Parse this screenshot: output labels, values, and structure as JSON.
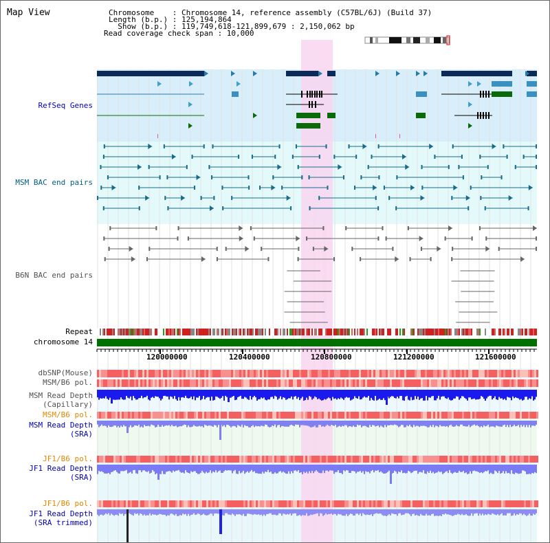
{
  "header": {
    "view_title": "Map View",
    "info_lines": [
      "Chromosome    : Chromosome 14, reference assembly (C57BL/6J) (Build 37)",
      "Length (b.p.) : 125,194,864",
      "  Show (b.p.) : 119,749,618-121,899,679 : 2,150,062 bp",
      "Read coverage check span : 10,000"
    ]
  },
  "track_labels": {
    "refseq": "RefSeq Genes",
    "msm_bac": "MSM BAC end pairs",
    "b6n_bac": "B6N BAC end pairs",
    "repeat": "Repeat",
    "chromosome": "chromosome 14",
    "dbsnp": "dbSNP(Mouse)",
    "msm_b6_pol_1": "MSM/B6 pol.",
    "msm_depth_cap_1": "MSM Read Depth",
    "msm_depth_cap_2": "(Capillary)",
    "msm_b6_pol_2": "MSM/B6 pol.",
    "msm_depth_sra_1": "MSM Read Depth",
    "msm_depth_sra_2": "(SRA)",
    "jf1_b6_pol_1": "JF1/B6 pol.",
    "jf1_depth_sra_1": "JF1 Read Depth",
    "jf1_depth_sra_2": "(SRA)",
    "jf1_b6_pol_2": "JF1/B6 pol.",
    "jf1_trim_1": "JF1 Read Depth",
    "jf1_trim_2": "(SRA trimmed)"
  },
  "axis": {
    "ticks": [
      "120000000",
      "120400000",
      "120800000",
      "121200000",
      "121600000"
    ]
  },
  "colors": {
    "refseq_label": "#0000c0",
    "bac_msm_label": "#006080",
    "b6n_label": "#505050",
    "orange_label": "#e08800",
    "blue_label": "#0000b0",
    "highlight": "#f8d6f0",
    "refseq_bg": "#d8eefa",
    "msm_bg": "#e4fafa",
    "chromosome_bar": "#007000"
  }
}
